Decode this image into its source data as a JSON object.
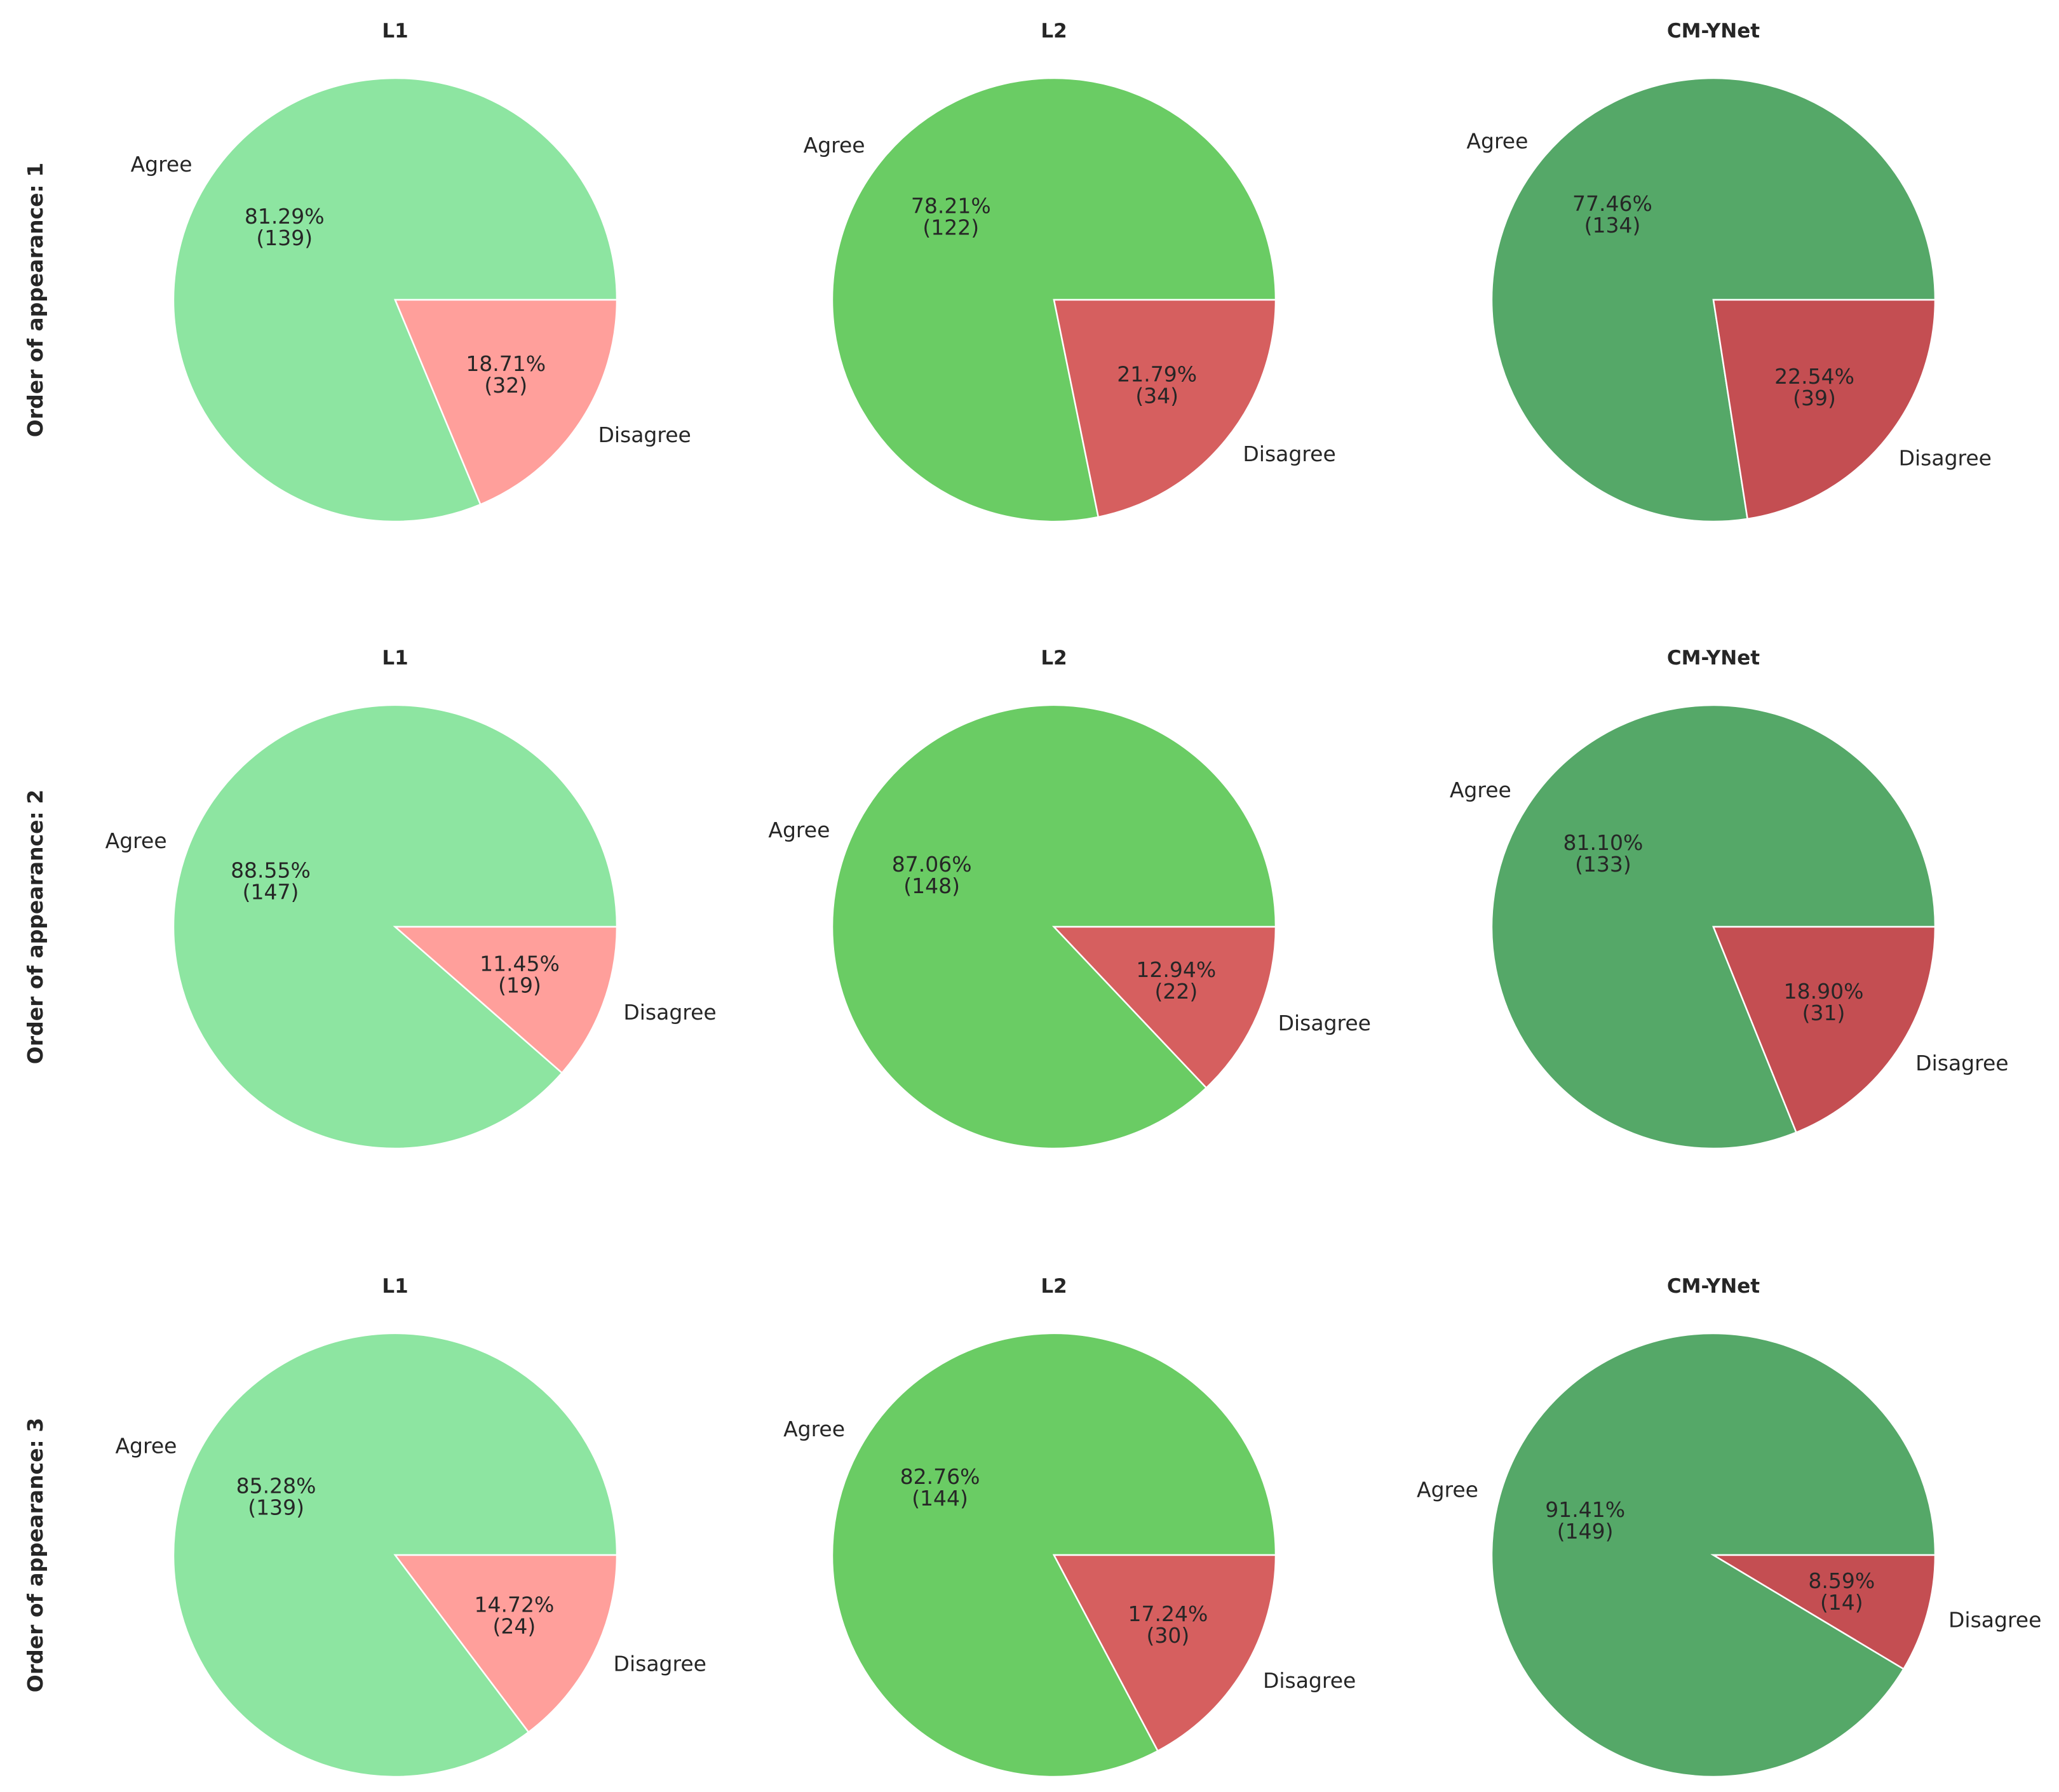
{
  "chart_data": [
    {
      "type": "pie",
      "row_label": "Order of appearance: 1",
      "title": "L1",
      "labels": [
        "Agree",
        "Disagree"
      ],
      "values": [
        139,
        32
      ],
      "percent_labels": [
        "81.29%",
        "18.71%"
      ],
      "count_labels": [
        "(139)",
        "(32)"
      ],
      "colors": [
        "#8de5a1",
        "#ff9f9b"
      ]
    },
    {
      "type": "pie",
      "row_label": "Order of appearance: 1",
      "title": "L2",
      "labels": [
        "Agree",
        "Disagree"
      ],
      "values": [
        122,
        34
      ],
      "percent_labels": [
        "78.21%",
        "21.79%"
      ],
      "count_labels": [
        "(122)",
        "(34)"
      ],
      "colors": [
        "#6acc64",
        "#d65f5f"
      ]
    },
    {
      "type": "pie",
      "row_label": "Order of appearance: 1",
      "title": "CM-YNet",
      "labels": [
        "Agree",
        "Disagree"
      ],
      "values": [
        134,
        39
      ],
      "percent_labels": [
        "77.46%",
        "22.54%"
      ],
      "count_labels": [
        "(134)",
        "(39)"
      ],
      "colors": [
        "#55a868",
        "#c44e52"
      ]
    },
    {
      "type": "pie",
      "row_label": "Order of appearance: 2",
      "title": "L1",
      "labels": [
        "Agree",
        "Disagree"
      ],
      "values": [
        147,
        19
      ],
      "percent_labels": [
        "88.55%",
        "11.45%"
      ],
      "count_labels": [
        "(147)",
        "(19)"
      ],
      "colors": [
        "#8de5a1",
        "#ff9f9b"
      ]
    },
    {
      "type": "pie",
      "row_label": "Order of appearance: 2",
      "title": "L2",
      "labels": [
        "Agree",
        "Disagree"
      ],
      "values": [
        148,
        22
      ],
      "percent_labels": [
        "87.06%",
        "12.94%"
      ],
      "count_labels": [
        "(148)",
        "(22)"
      ],
      "colors": [
        "#6acc64",
        "#d65f5f"
      ]
    },
    {
      "type": "pie",
      "row_label": "Order of appearance: 2",
      "title": "CM-YNet",
      "labels": [
        "Agree",
        "Disagree"
      ],
      "values": [
        133,
        31
      ],
      "percent_labels": [
        "81.10%",
        "18.90%"
      ],
      "count_labels": [
        "(133)",
        "(31)"
      ],
      "colors": [
        "#55a868",
        "#c44e52"
      ]
    },
    {
      "type": "pie",
      "row_label": "Order of appearance: 3",
      "title": "L1",
      "labels": [
        "Agree",
        "Disagree"
      ],
      "values": [
        139,
        24
      ],
      "percent_labels": [
        "85.28%",
        "14.72%"
      ],
      "count_labels": [
        "(139)",
        "(24)"
      ],
      "colors": [
        "#8de5a1",
        "#ff9f9b"
      ]
    },
    {
      "type": "pie",
      "row_label": "Order of appearance: 3",
      "title": "L2",
      "labels": [
        "Agree",
        "Disagree"
      ],
      "values": [
        144,
        30
      ],
      "percent_labels": [
        "82.76%",
        "17.24%"
      ],
      "count_labels": [
        "(144)",
        "(30)"
      ],
      "colors": [
        "#6acc64",
        "#d65f5f"
      ]
    },
    {
      "type": "pie",
      "row_label": "Order of appearance: 3",
      "title": "CM-YNet",
      "labels": [
        "Agree",
        "Disagree"
      ],
      "values": [
        149,
        14
      ],
      "percent_labels": [
        "91.41%",
        "8.59%"
      ],
      "count_labels": [
        "(149)",
        "(14)"
      ],
      "colors": [
        "#55a868",
        "#c44e52"
      ]
    }
  ],
  "row_labels": [
    "Order of appearance: 1",
    "Order of appearance: 2",
    "Order of appearance: 3"
  ]
}
